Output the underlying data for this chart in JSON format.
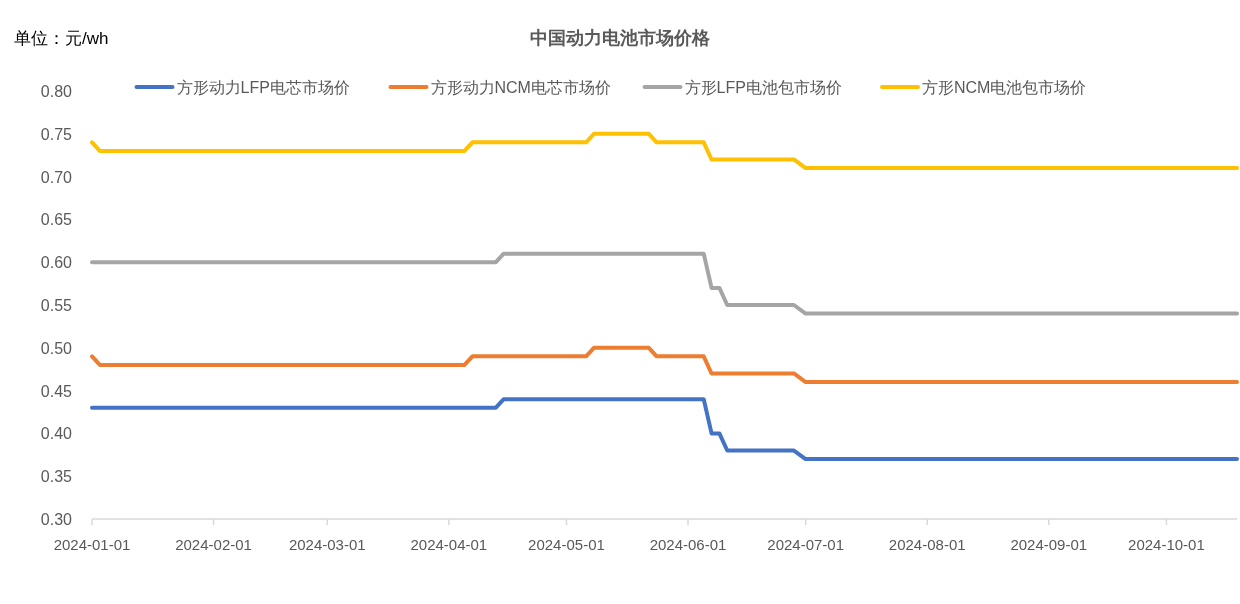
{
  "chart_data": {
    "type": "line",
    "title": "中国动力电池市场价格",
    "ylabel": "单位：元/wh",
    "xlim": [
      "2024-01-01",
      "2024-10-19"
    ],
    "xticks": [
      "2024-01-01",
      "2024-02-01",
      "2024-03-01",
      "2024-04-01",
      "2024-05-01",
      "2024-06-01",
      "2024-07-01",
      "2024-08-01",
      "2024-09-01",
      "2024-10-01"
    ],
    "ylim": [
      0.3,
      0.8
    ],
    "yticks": [
      {
        "value": 0.3,
        "label": "0.30"
      },
      {
        "value": 0.35,
        "label": "0.35"
      },
      {
        "value": 0.4,
        "label": "0.40"
      },
      {
        "value": 0.45,
        "label": "0.45"
      },
      {
        "value": 0.5,
        "label": "0.50"
      },
      {
        "value": 0.55,
        "label": "0.55"
      },
      {
        "value": 0.6,
        "label": "0.60"
      },
      {
        "value": 0.65,
        "label": "0.65"
      },
      {
        "value": 0.7,
        "label": "0.70"
      },
      {
        "value": 0.75,
        "label": "0.75"
      },
      {
        "value": 0.8,
        "label": "0.80"
      }
    ],
    "grid": false,
    "legend": "top",
    "marker": "none",
    "line_style": "solid",
    "series": [
      {
        "name": "方形动力LFP电芯市场价",
        "color": "#4472c4",
        "x": [
          "2024-01-01",
          "2024-04-13",
          "2024-04-15",
          "2024-06-05",
          "2024-06-07",
          "2024-06-09",
          "2024-06-11",
          "2024-06-28",
          "2024-07-01",
          "2024-10-19"
        ],
        "values": [
          0.43,
          0.43,
          0.44,
          0.44,
          0.4,
          0.4,
          0.38,
          0.38,
          0.37,
          0.37
        ]
      },
      {
        "name": "方形动力NCM电芯市场价",
        "color": "#ed7d31",
        "x": [
          "2024-01-01",
          "2024-01-03",
          "2024-04-05",
          "2024-04-07",
          "2024-05-06",
          "2024-05-08",
          "2024-05-22",
          "2024-05-24",
          "2024-06-05",
          "2024-06-07",
          "2024-06-28",
          "2024-07-01",
          "2024-10-19"
        ],
        "values": [
          0.49,
          0.48,
          0.48,
          0.49,
          0.49,
          0.5,
          0.5,
          0.49,
          0.49,
          0.47,
          0.47,
          0.46,
          0.46
        ]
      },
      {
        "name": "方形LFP电池包市场价",
        "color": "#a5a5a5",
        "x": [
          "2024-01-01",
          "2024-04-13",
          "2024-04-15",
          "2024-06-05",
          "2024-06-07",
          "2024-06-09",
          "2024-06-11",
          "2024-06-28",
          "2024-07-01",
          "2024-10-19"
        ],
        "values": [
          0.6,
          0.6,
          0.61,
          0.61,
          0.57,
          0.57,
          0.55,
          0.55,
          0.54,
          0.54
        ]
      },
      {
        "name": "方形NCM电池包市场价",
        "color": "#ffc000",
        "x": [
          "2024-01-01",
          "2024-01-03",
          "2024-04-05",
          "2024-04-07",
          "2024-05-06",
          "2024-05-08",
          "2024-05-22",
          "2024-05-24",
          "2024-06-05",
          "2024-06-07",
          "2024-06-28",
          "2024-07-01",
          "2024-10-19"
        ],
        "values": [
          0.74,
          0.73,
          0.73,
          0.74,
          0.74,
          0.75,
          0.75,
          0.74,
          0.74,
          0.72,
          0.72,
          0.71,
          0.71
        ]
      }
    ]
  }
}
